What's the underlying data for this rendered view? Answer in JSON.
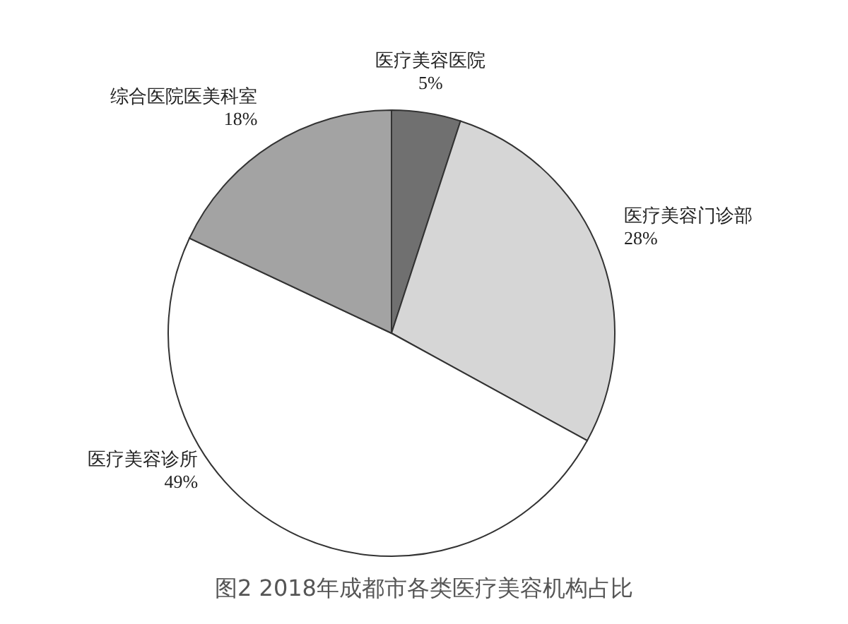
{
  "chart_data": {
    "type": "pie",
    "title": "图2 2018年成都市各类医疗美容机构占比",
    "categories": [
      "医疗美容医院",
      "医疗美容门诊部",
      "医疗美容诊所",
      "综合医院医美科室"
    ],
    "values": [
      5,
      28,
      49,
      18
    ],
    "value_labels": [
      "5%",
      "28%",
      "49%",
      "18%"
    ],
    "colors": [
      "#707070",
      "#d6d6d6",
      "#ffffff",
      "#a3a3a3"
    ]
  }
}
